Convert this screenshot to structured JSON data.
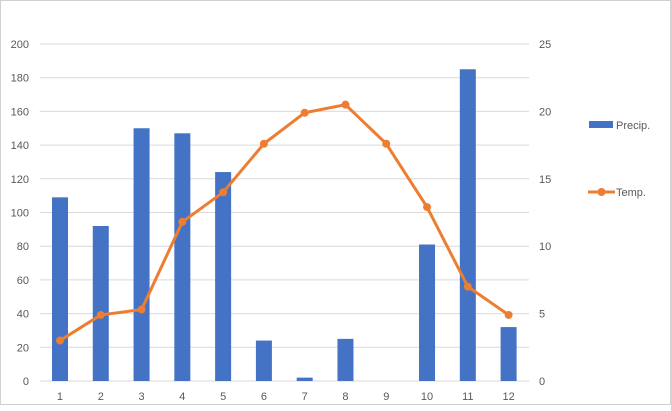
{
  "chart_data": {
    "type": "bar+line",
    "categories": [
      "1",
      "2",
      "3",
      "4",
      "5",
      "6",
      "7",
      "8",
      "9",
      "10",
      "11",
      "12"
    ],
    "series": [
      {
        "name": "Precip.",
        "type": "bar",
        "axis": "left",
        "color": "#4472C4",
        "values": [
          109,
          92,
          150,
          147,
          124,
          24,
          2,
          25,
          0,
          81,
          185,
          32
        ]
      },
      {
        "name": "Temp.",
        "type": "line",
        "axis": "right",
        "color": "#ED7D31",
        "values": [
          3.0,
          4.9,
          5.3,
          11.8,
          14.0,
          17.6,
          19.9,
          20.5,
          17.6,
          12.9,
          7.0,
          4.9
        ]
      }
    ],
    "y_left": {
      "range": [
        0,
        200
      ],
      "ticks": [
        0,
        20,
        40,
        60,
        80,
        100,
        120,
        140,
        160,
        180,
        200
      ]
    },
    "y_right": {
      "range": [
        0,
        25
      ],
      "ticks": [
        0,
        5,
        10,
        15,
        20,
        25
      ]
    },
    "grid": true,
    "legend": "right"
  }
}
